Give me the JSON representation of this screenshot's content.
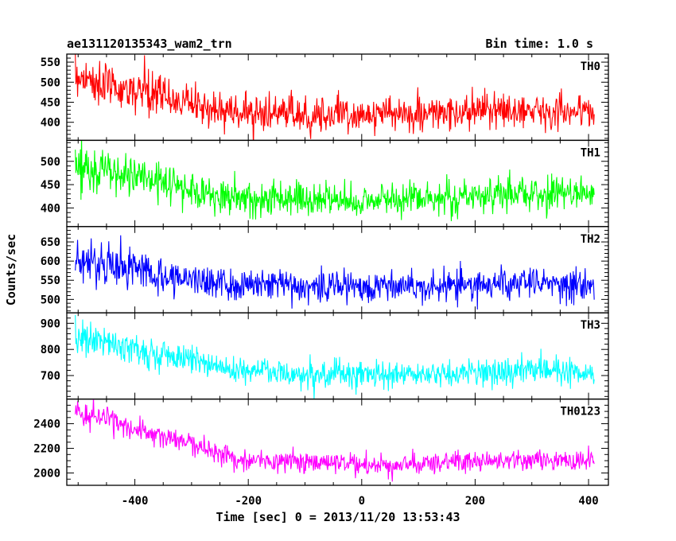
{
  "chart_data": {
    "type": "line",
    "title": "ae131120135343_wam2_trn",
    "bin_time_label": "Bin time: 1.0 s",
    "xlabel": "Time [sec] 0 = 2013/11/20 13:53:43",
    "ylabel": "Counts/sec",
    "xlim": [
      -520,
      435
    ],
    "xticks": [
      -400,
      -200,
      0,
      200,
      400
    ],
    "x_range": [
      -505,
      410
    ],
    "panels": [
      {
        "name": "TH0",
        "color": "#ff0000",
        "ylim": [
          355,
          570
        ],
        "yticks": [
          400,
          450,
          500,
          550
        ],
        "trend": [
          [
            -505,
            520
          ],
          [
            -450,
            490
          ],
          [
            -350,
            465
          ],
          [
            -250,
            430
          ],
          [
            -150,
            420
          ],
          [
            0,
            420
          ],
          [
            150,
            422
          ],
          [
            300,
            432
          ],
          [
            410,
            425
          ]
        ],
        "noise": 22,
        "noise_by_x": [
          [
            -505,
            30
          ],
          [
            -300,
            24
          ],
          [
            410,
            20
          ]
        ]
      },
      {
        "name": "TH1",
        "color": "#00ff00",
        "ylim": [
          360,
          545
        ],
        "yticks": [
          400,
          450,
          500
        ],
        "trend": [
          [
            -505,
            490
          ],
          [
            -450,
            478
          ],
          [
            -350,
            455
          ],
          [
            -250,
            425
          ],
          [
            -150,
            420
          ],
          [
            0,
            415
          ],
          [
            150,
            425
          ],
          [
            300,
            430
          ],
          [
            410,
            430
          ]
        ],
        "noise": 20,
        "noise_by_x": [
          [
            -505,
            24
          ],
          [
            -300,
            20
          ],
          [
            410,
            18
          ]
        ]
      },
      {
        "name": "TH2",
        "color": "#0000ff",
        "ylim": [
          465,
          690
        ],
        "yticks": [
          500,
          550,
          600,
          650
        ],
        "trend": [
          [
            -505,
            605
          ],
          [
            -450,
            592
          ],
          [
            -350,
            565
          ],
          [
            -250,
            540
          ],
          [
            -150,
            538
          ],
          [
            0,
            535
          ],
          [
            150,
            537
          ],
          [
            300,
            540
          ],
          [
            410,
            540
          ]
        ],
        "noise": 22,
        "noise_by_x": [
          [
            -505,
            26
          ],
          [
            -300,
            22
          ],
          [
            410,
            21
          ]
        ]
      },
      {
        "name": "TH3",
        "color": "#00ffff",
        "ylim": [
          610,
          940
        ],
        "yticks": [
          700,
          800,
          900
        ],
        "trend": [
          [
            -505,
            855
          ],
          [
            -450,
            825
          ],
          [
            -350,
            780
          ],
          [
            -250,
            735
          ],
          [
            -150,
            712
          ],
          [
            0,
            700
          ],
          [
            150,
            705
          ],
          [
            300,
            722
          ],
          [
            410,
            710
          ]
        ],
        "noise": 28,
        "noise_by_x": [
          [
            -505,
            32
          ],
          [
            -300,
            28
          ],
          [
            410,
            26
          ]
        ]
      },
      {
        "name": "TH0123",
        "color": "#ff00ff",
        "ylim": [
          1900,
          2600
        ],
        "yticks": [
          2000,
          2200,
          2400
        ],
        "trend": [
          [
            -505,
            2500
          ],
          [
            -450,
            2440
          ],
          [
            -400,
            2350
          ],
          [
            -300,
            2240
          ],
          [
            -220,
            2110
          ],
          [
            -100,
            2085
          ],
          [
            0,
            2060
          ],
          [
            100,
            2070
          ],
          [
            200,
            2100
          ],
          [
            300,
            2110
          ],
          [
            410,
            2090
          ]
        ],
        "noise": 45,
        "noise_by_x": [
          [
            -505,
            50
          ],
          [
            -300,
            45
          ],
          [
            410,
            42
          ]
        ]
      }
    ]
  }
}
